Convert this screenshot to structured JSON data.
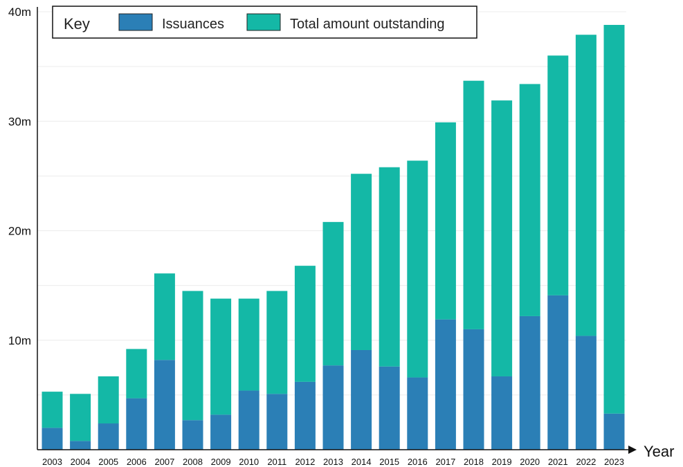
{
  "chart_data": {
    "type": "bar",
    "stacked": true,
    "categories": [
      "2003",
      "2004",
      "2005",
      "2006",
      "2007",
      "2008",
      "2009",
      "2010",
      "2011",
      "2012",
      "2013",
      "2014",
      "2015",
      "2016",
      "2017",
      "2018",
      "2019",
      "2020",
      "2021",
      "2022",
      "2023"
    ],
    "series": [
      {
        "name": "Issuances",
        "color": "#2b7fb6",
        "values": [
          2.0,
          0.8,
          2.4,
          4.7,
          8.2,
          2.7,
          3.2,
          5.4,
          5.1,
          6.2,
          7.7,
          9.1,
          7.6,
          6.6,
          11.9,
          11.0,
          6.7,
          12.2,
          14.1,
          10.4,
          3.3
        ]
      },
      {
        "name": "Total amount outstanding",
        "color": "#14b8a6",
        "values": [
          3.3,
          4.3,
          4.3,
          4.5,
          7.9,
          11.8,
          10.6,
          8.4,
          9.4,
          10.6,
          13.1,
          16.1,
          18.2,
          19.8,
          18.0,
          22.7,
          25.2,
          21.2,
          21.9,
          27.5,
          35.5
        ]
      }
    ],
    "ylim": [
      0,
      40
    ],
    "yticks": [
      {
        "value": 10,
        "label": "10m"
      },
      {
        "value": 20,
        "label": "20m"
      },
      {
        "value": 30,
        "label": "30m"
      },
      {
        "value": 40,
        "label": "40m"
      }
    ],
    "grid_values": [
      5,
      10,
      15,
      20,
      25,
      30,
      35,
      40
    ],
    "xlabel": "Year",
    "ylabel": "",
    "title": "",
    "grid": true,
    "legend": {
      "title": "Key",
      "placement": "top-left"
    }
  }
}
